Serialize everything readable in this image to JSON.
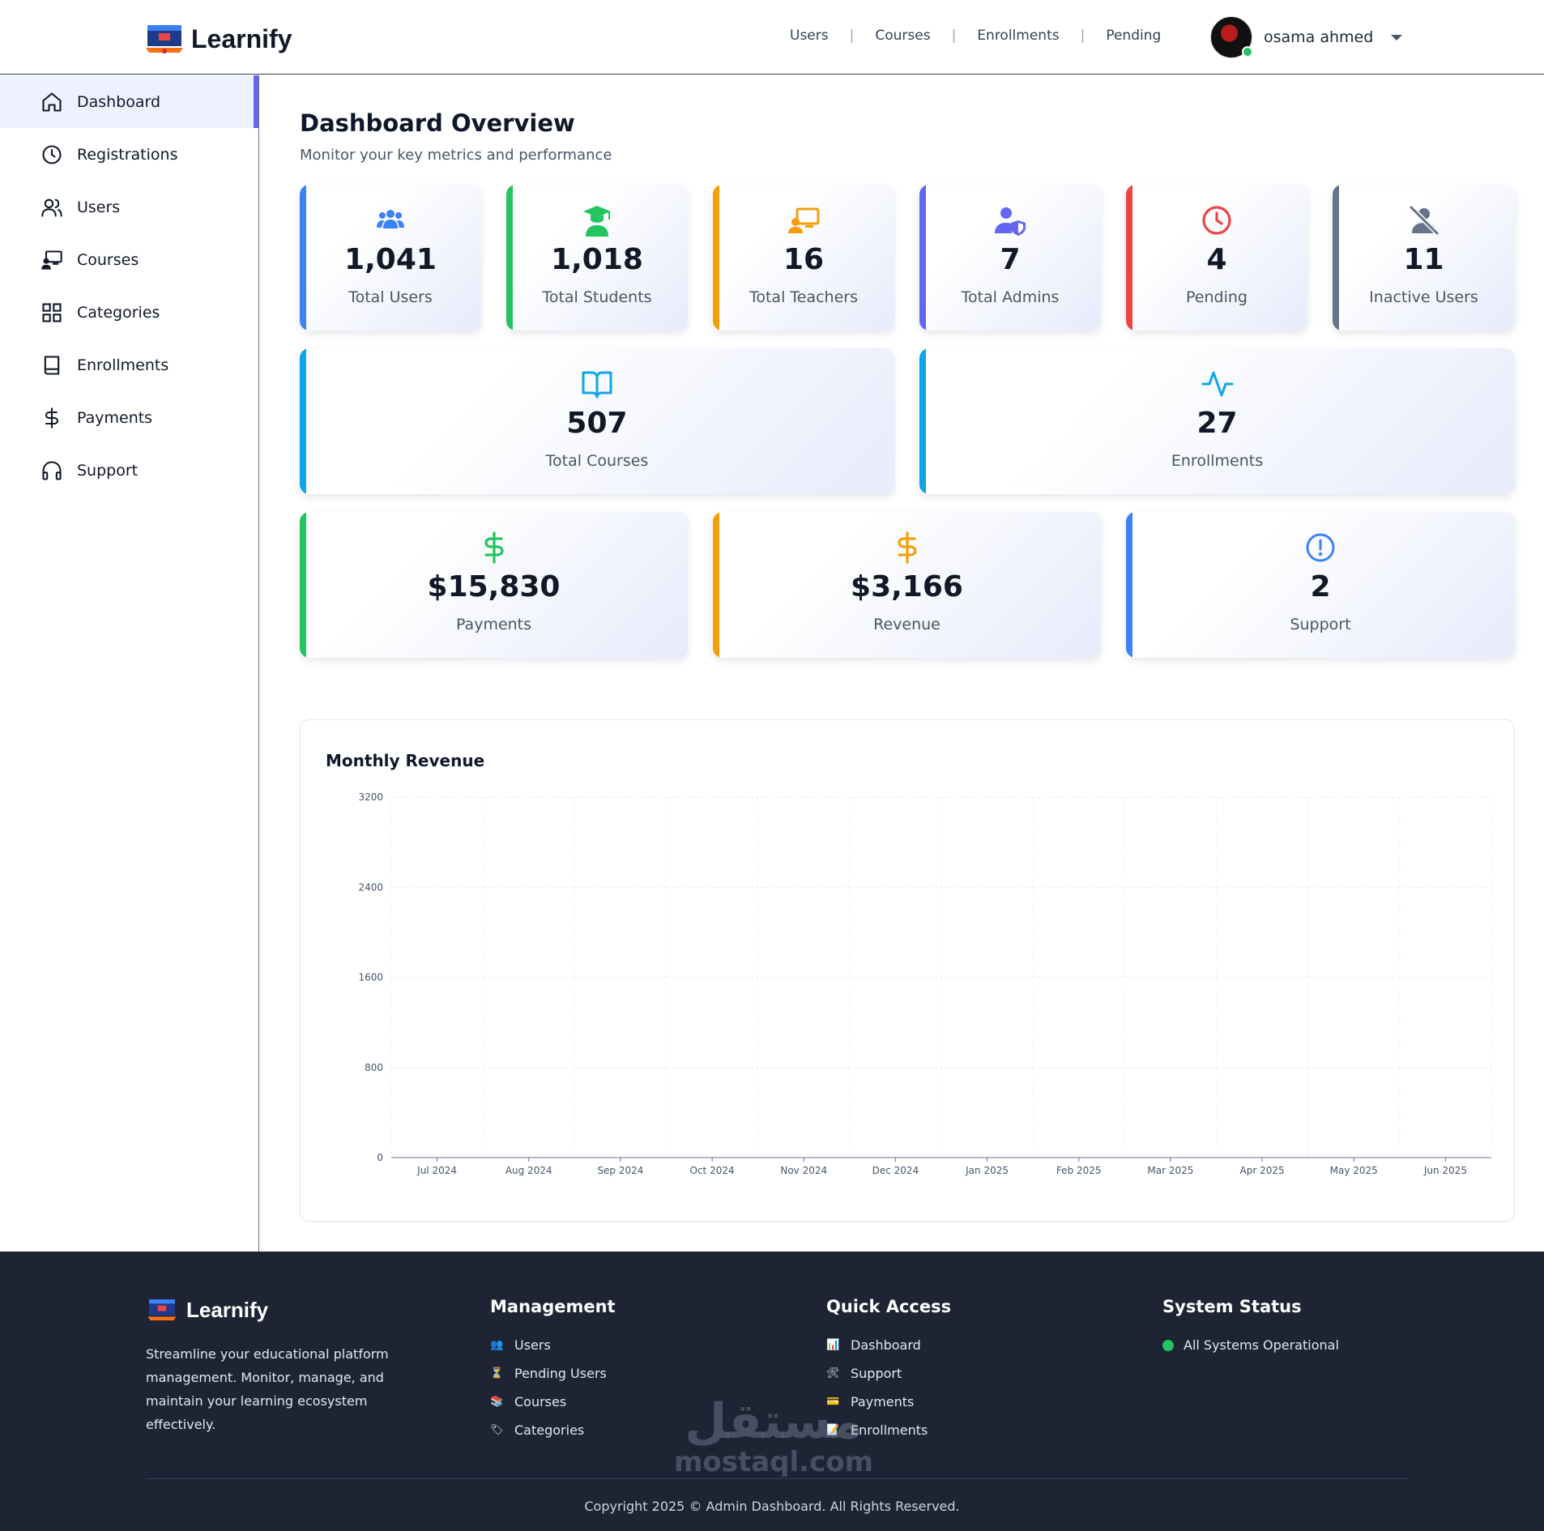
{
  "brand": {
    "name": "Learnify"
  },
  "topnav": {
    "items": [
      "Users",
      "Courses",
      "Enrollments",
      "Pending"
    ],
    "user_name": "osama ahmed"
  },
  "sidebar": {
    "items": [
      {
        "label": "Dashboard",
        "icon": "home-icon"
      },
      {
        "label": "Registrations",
        "icon": "clock-icon"
      },
      {
        "label": "Users",
        "icon": "users-icon"
      },
      {
        "label": "Courses",
        "icon": "presentation-icon"
      },
      {
        "label": "Categories",
        "icon": "grid-icon"
      },
      {
        "label": "Enrollments",
        "icon": "book-icon"
      },
      {
        "label": "Payments",
        "icon": "dollar-icon"
      },
      {
        "label": "Support",
        "icon": "headphones-icon"
      }
    ],
    "active": "Dashboard"
  },
  "page": {
    "title": "Dashboard Overview",
    "subtitle": "Monitor your key metrics and performance"
  },
  "stats": [
    {
      "value": "1,041",
      "label": "Total Users",
      "color": "#3b82f6",
      "icon": "users-group-icon"
    },
    {
      "value": "1,018",
      "label": "Total Students",
      "color": "#22c55e",
      "icon": "graduate-icon"
    },
    {
      "value": "16",
      "label": "Total Teachers",
      "color": "#f59e0b",
      "icon": "teacher-icon"
    },
    {
      "value": "7",
      "label": "Total Admins",
      "color": "#6366f1",
      "icon": "user-shield-icon"
    },
    {
      "value": "4",
      "label": "Pending",
      "color": "#ef4444",
      "icon": "clock-icon"
    },
    {
      "value": "11",
      "label": "Inactive Users",
      "color": "#64748b",
      "icon": "user-slash-icon"
    },
    {
      "value": "507",
      "label": "Total Courses",
      "color": "#0ea5e9",
      "icon": "open-book-icon"
    },
    {
      "value": "27",
      "label": "Enrollments",
      "color": "#0ea5e9",
      "icon": "activity-icon"
    },
    {
      "value": "$15,830",
      "label": "Payments",
      "color": "#22c55e",
      "icon": "dollar-icon"
    },
    {
      "value": "$3,166",
      "label": "Revenue",
      "color": "#f59e0b",
      "icon": "dollar-icon"
    },
    {
      "value": "2",
      "label": "Support",
      "color": "#3b82f6",
      "icon": "alert-circle-icon"
    }
  ],
  "chart_data": {
    "type": "line",
    "title": "Monthly Revenue",
    "categories": [
      "Jul 2024",
      "Aug 2024",
      "Sep 2024",
      "Oct 2024",
      "Nov 2024",
      "Dec 2024",
      "Jan 2025",
      "Feb 2025",
      "Mar 2025",
      "Apr 2025",
      "May 2025",
      "Jun 2025"
    ],
    "yticks": [
      "0",
      "800",
      "1600",
      "2400",
      "3200"
    ],
    "ylim": [
      0,
      3200
    ],
    "grid": true,
    "series": []
  },
  "footer": {
    "brand": "Learnify",
    "description": "Streamline your educational platform management. Monitor, manage, and maintain your learning ecosystem effectively.",
    "management": {
      "title": "Management",
      "links": [
        {
          "label": "Users",
          "icon": "👥"
        },
        {
          "label": "Pending Users",
          "icon": "⏳"
        },
        {
          "label": "Courses",
          "icon": "📚"
        },
        {
          "label": "Categories",
          "icon": "🏷"
        }
      ]
    },
    "quick_access": {
      "title": "Quick Access",
      "links": [
        {
          "label": "Dashboard",
          "icon": "📊"
        },
        {
          "label": "Support",
          "icon": "🛠"
        },
        {
          "label": "Payments",
          "icon": "💳"
        },
        {
          "label": "Enrollments",
          "icon": "📝"
        }
      ]
    },
    "system_status": {
      "title": "System Status",
      "status": "All Systems Operational",
      "status_color": "#22c55e"
    },
    "copyright": "Copyright 2025 © Admin Dashboard. All Rights Reserved.",
    "watermark_ar": "مستقل",
    "watermark_en": "mostaql.com"
  }
}
